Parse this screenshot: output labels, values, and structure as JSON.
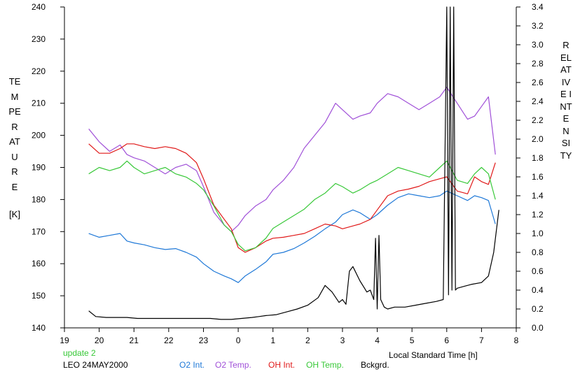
{
  "chart_data": {
    "type": "line",
    "title": "",
    "xlabel": "Local Standard Time [h]",
    "ylabel_left": "TEMPERATURE",
    "ylabel_left_unit": "[K]",
    "ylabel_right": "RELATIVE INTENSITY",
    "x_ticks": [
      "19",
      "20",
      "21",
      "22",
      "23",
      "0",
      "1",
      "2",
      "3",
      "4",
      "5",
      "6",
      "7",
      "8"
    ],
    "xlim": [
      19,
      32
    ],
    "ylim_left": [
      140,
      240
    ],
    "y_ticks_left": [
      140,
      150,
      160,
      170,
      180,
      190,
      200,
      210,
      220,
      230,
      240
    ],
    "ylim_right": [
      0,
      3.4
    ],
    "y_ticks_right": [
      "0.0",
      "0.2",
      "0.4",
      "0.6",
      "0.8",
      "1.0",
      "1.2",
      "1.4",
      "1.6",
      "1.8",
      "2.0",
      "2.2",
      "2.4",
      "2.6",
      "2.8",
      "3.0",
      "3.2",
      "3.4"
    ],
    "grid": false,
    "series": [
      {
        "name": "O2 Int.",
        "axis": "right",
        "color": "#1e78d7",
        "x": [
          19.7,
          20.0,
          20.3,
          20.6,
          20.8,
          21.0,
          21.3,
          21.6,
          21.9,
          22.2,
          22.5,
          22.8,
          23.0,
          23.3,
          23.6,
          23.8,
          24.0,
          24.2,
          24.5,
          24.8,
          25.0,
          25.3,
          25.6,
          25.9,
          26.2,
          26.5,
          26.8,
          27.0,
          27.3,
          27.5,
          27.8,
          28.0,
          28.3,
          28.6,
          28.9,
          29.2,
          29.5,
          29.8,
          30.0,
          30.3,
          30.6,
          30.8,
          31.0,
          31.2,
          31.4
        ],
        "y": [
          1.0,
          0.96,
          0.98,
          1.0,
          0.92,
          0.9,
          0.88,
          0.85,
          0.83,
          0.84,
          0.8,
          0.75,
          0.68,
          0.6,
          0.55,
          0.52,
          0.48,
          0.55,
          0.62,
          0.7,
          0.78,
          0.8,
          0.84,
          0.9,
          0.97,
          1.05,
          1.12,
          1.2,
          1.25,
          1.22,
          1.15,
          1.2,
          1.3,
          1.38,
          1.42,
          1.4,
          1.38,
          1.4,
          1.45,
          1.4,
          1.35,
          1.4,
          1.38,
          1.35,
          1.1
        ]
      },
      {
        "name": "O2 Temp.",
        "axis": "left",
        "color": "#a050d8",
        "x": [
          19.7,
          20.0,
          20.3,
          20.6,
          20.8,
          21.0,
          21.3,
          21.6,
          21.9,
          22.2,
          22.5,
          22.8,
          23.0,
          23.3,
          23.6,
          23.8,
          24.0,
          24.2,
          24.5,
          24.8,
          25.0,
          25.3,
          25.6,
          25.9,
          26.2,
          26.5,
          26.8,
          27.0,
          27.3,
          27.5,
          27.8,
          28.0,
          28.3,
          28.6,
          28.9,
          29.2,
          29.5,
          29.8,
          30.0,
          30.3,
          30.6,
          30.8,
          31.0,
          31.2,
          31.4
        ],
        "y": [
          202,
          198,
          195,
          197,
          194,
          193,
          192,
          190,
          188,
          190,
          191,
          189,
          184,
          176,
          172,
          170,
          172,
          175,
          178,
          180,
          183,
          186,
          190,
          196,
          200,
          204,
          210,
          208,
          205,
          206,
          207,
          210,
          213,
          212,
          210,
          208,
          210,
          212,
          215,
          210,
          205,
          206,
          209,
          212,
          194
        ]
      },
      {
        "name": "OH Int.",
        "axis": "right",
        "color": "#e01818",
        "x": [
          19.7,
          20.0,
          20.3,
          20.6,
          20.8,
          21.0,
          21.3,
          21.6,
          21.9,
          22.2,
          22.5,
          22.8,
          23.0,
          23.3,
          23.6,
          23.8,
          24.0,
          24.2,
          24.5,
          24.8,
          25.0,
          25.3,
          25.6,
          25.9,
          26.2,
          26.5,
          26.8,
          27.0,
          27.3,
          27.5,
          27.8,
          28.0,
          28.3,
          28.6,
          28.9,
          29.2,
          29.5,
          29.8,
          30.0,
          30.3,
          30.6,
          30.8,
          31.0,
          31.2,
          31.4
        ],
        "y": [
          1.95,
          1.85,
          1.85,
          1.9,
          1.95,
          1.95,
          1.92,
          1.9,
          1.92,
          1.9,
          1.85,
          1.75,
          1.58,
          1.3,
          1.15,
          1.05,
          0.85,
          0.8,
          0.85,
          0.92,
          0.95,
          0.96,
          0.98,
          1.0,
          1.05,
          1.1,
          1.08,
          1.05,
          1.08,
          1.1,
          1.15,
          1.25,
          1.4,
          1.45,
          1.47,
          1.5,
          1.55,
          1.58,
          1.6,
          1.45,
          1.42,
          1.6,
          1.55,
          1.52,
          1.75
        ]
      },
      {
        "name": "OH Temp.",
        "axis": "left",
        "color": "#38c838",
        "x": [
          19.7,
          20.0,
          20.3,
          20.6,
          20.8,
          21.0,
          21.3,
          21.6,
          21.9,
          22.2,
          22.5,
          22.8,
          23.0,
          23.3,
          23.6,
          23.8,
          24.0,
          24.2,
          24.5,
          24.8,
          25.0,
          25.3,
          25.6,
          25.9,
          26.2,
          26.5,
          26.8,
          27.0,
          27.3,
          27.5,
          27.8,
          28.0,
          28.3,
          28.6,
          28.9,
          29.2,
          29.5,
          29.8,
          30.0,
          30.3,
          30.6,
          30.8,
          31.0,
          31.2,
          31.4
        ],
        "y": [
          188,
          190,
          189,
          190,
          192,
          190,
          188,
          189,
          190,
          188,
          187,
          185,
          183,
          178,
          172,
          170,
          166,
          164,
          165,
          168,
          171,
          173,
          175,
          177,
          180,
          182,
          185,
          184,
          182,
          183,
          185,
          186,
          188,
          190,
          189,
          188,
          187,
          190,
          192,
          186,
          185,
          188,
          190,
          188,
          180
        ]
      },
      {
        "name": "Bckgrd.",
        "axis": "right",
        "color": "#000000",
        "x": [
          19.7,
          19.9,
          20.2,
          20.5,
          20.8,
          21.1,
          21.4,
          21.7,
          22.0,
          22.3,
          22.6,
          22.9,
          23.2,
          23.5,
          23.8,
          24.1,
          24.4,
          24.6,
          24.8,
          25.1,
          25.4,
          25.7,
          26.0,
          26.3,
          26.5,
          26.7,
          26.9,
          27.0,
          27.1,
          27.2,
          27.3,
          27.5,
          27.7,
          27.8,
          27.9,
          27.95,
          28.0,
          28.05,
          28.1,
          28.2,
          28.3,
          28.5,
          28.8,
          29.1,
          29.4,
          29.7,
          29.9,
          30.0,
          30.05,
          30.1,
          30.15,
          30.2,
          30.25,
          30.3,
          30.5,
          30.7,
          31.0,
          31.2,
          31.35,
          31.5
        ],
        "y": [
          0.18,
          0.12,
          0.11,
          0.11,
          0.11,
          0.1,
          0.1,
          0.1,
          0.1,
          0.1,
          0.1,
          0.1,
          0.1,
          0.09,
          0.09,
          0.1,
          0.11,
          0.12,
          0.13,
          0.14,
          0.17,
          0.2,
          0.24,
          0.32,
          0.45,
          0.38,
          0.27,
          0.3,
          0.25,
          0.6,
          0.65,
          0.5,
          0.38,
          0.4,
          0.3,
          0.95,
          0.2,
          0.98,
          0.3,
          0.22,
          0.2,
          0.22,
          0.22,
          0.24,
          0.26,
          0.28,
          0.3,
          3.4,
          0.35,
          3.4,
          0.4,
          3.4,
          0.4,
          0.42,
          0.44,
          0.46,
          0.48,
          0.55,
          0.8,
          1.25
        ]
      }
    ],
    "annotations": [
      "update 2",
      "LEO 24MAY2000"
    ],
    "legend_placement": "bottom"
  }
}
